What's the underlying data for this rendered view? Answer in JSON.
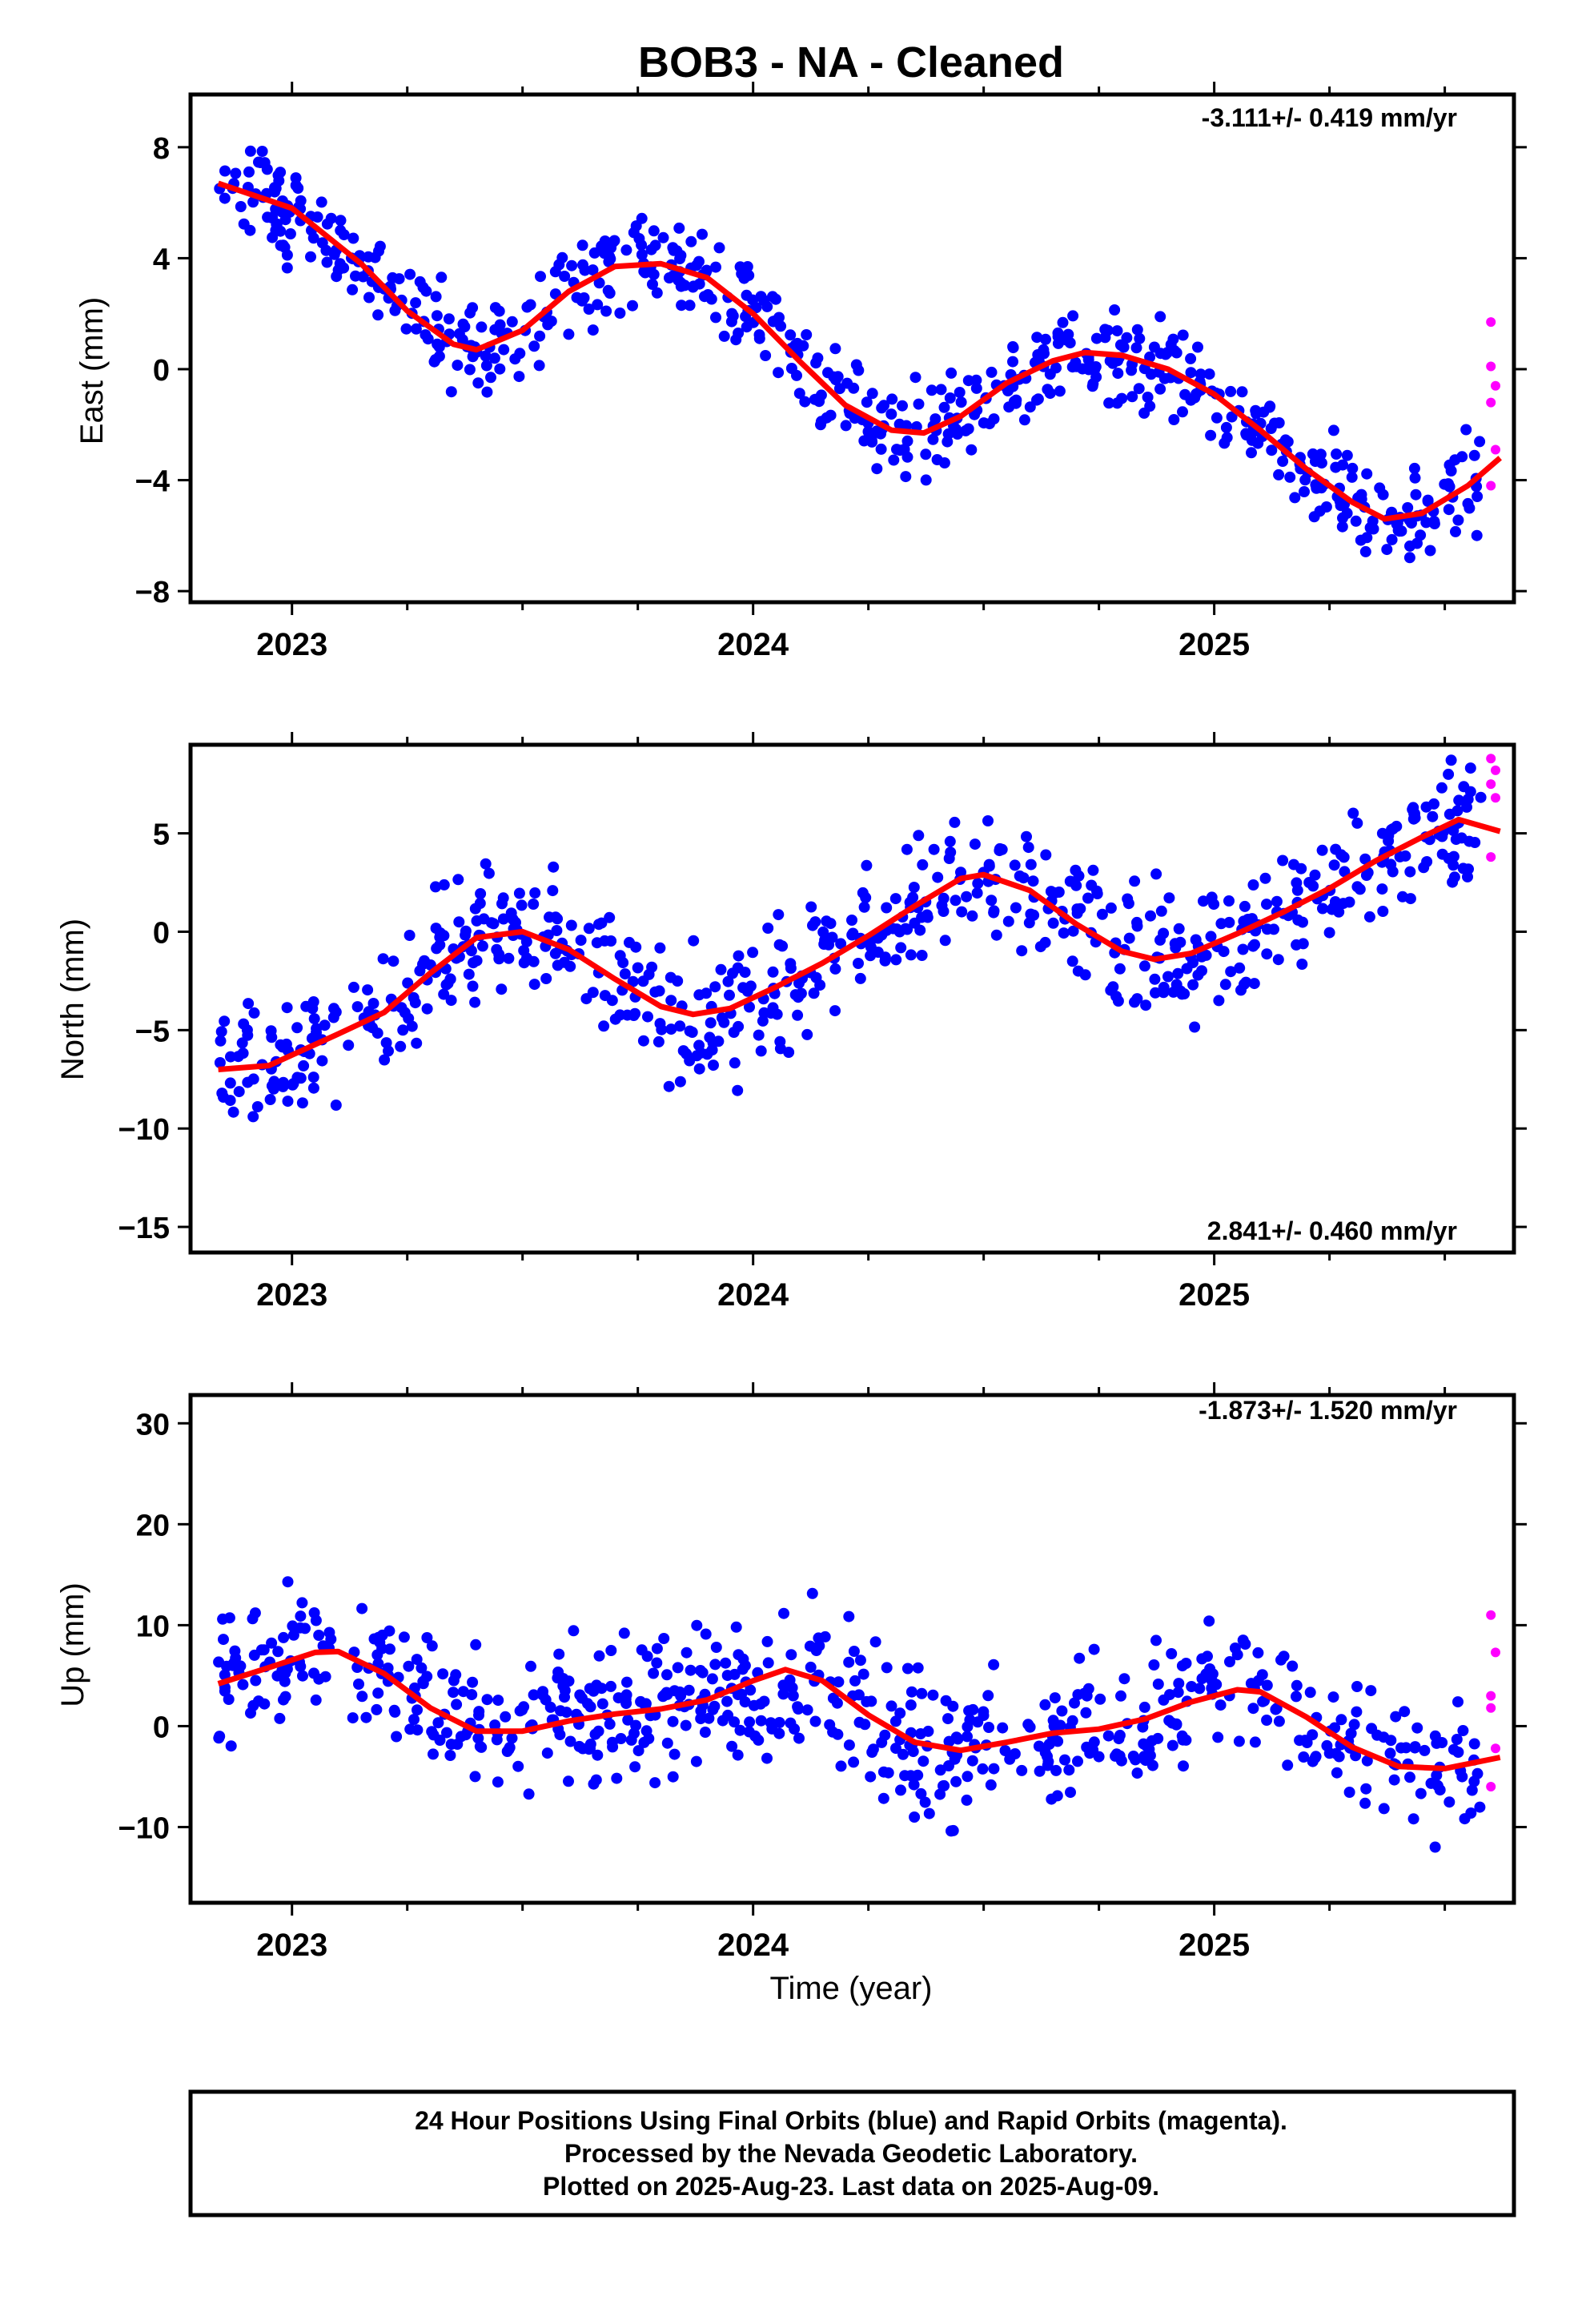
{
  "title": "BOB3  - NA - Cleaned",
  "colors": {
    "final": "#0000ff",
    "rapid": "#ff00ff",
    "fit": "#ff0000",
    "axis": "#000000"
  },
  "footer": {
    "line1": "24 Hour Positions Using Final Orbits (blue) and Rapid Orbits (magenta).",
    "line2": "Processed by the Nevada Geodetic Laboratory.",
    "line3": "Plotted on 2025-Aug-23. Last data on 2025-Aug-09."
  },
  "chart_data": [
    {
      "type": "scatter",
      "ylabel": "East (mm)",
      "xlabel": "",
      "rate": "-3.111+/- 0.419 mm/yr",
      "rate_position": "top-right",
      "xlim": [
        2022.78,
        2025.65
      ],
      "ylim": [
        -8.4,
        9.9
      ],
      "yticks": [
        -8,
        -4,
        0,
        4,
        8
      ],
      "ytick_labels": [
        "−8",
        "−4",
        "0",
        "4",
        "8"
      ],
      "xticks": [
        2023,
        2024,
        2025
      ],
      "xtick_labels": [
        "2023",
        "2024",
        "2025"
      ],
      "model_curve": [
        [
          2022.84,
          6.7
        ],
        [
          2023.0,
          5.8
        ],
        [
          2023.15,
          3.8
        ],
        [
          2023.25,
          2.1
        ],
        [
          2023.35,
          0.9
        ],
        [
          2023.4,
          0.7
        ],
        [
          2023.5,
          1.4
        ],
        [
          2023.6,
          2.8
        ],
        [
          2023.7,
          3.7
        ],
        [
          2023.8,
          3.8
        ],
        [
          2023.9,
          3.3
        ],
        [
          2024.0,
          2.0
        ],
        [
          2024.1,
          0.3
        ],
        [
          2024.2,
          -1.3
        ],
        [
          2024.3,
          -2.2
        ],
        [
          2024.37,
          -2.3
        ],
        [
          2024.45,
          -1.7
        ],
        [
          2024.55,
          -0.5
        ],
        [
          2024.65,
          0.3
        ],
        [
          2024.72,
          0.6
        ],
        [
          2024.8,
          0.5
        ],
        [
          2024.9,
          0.0
        ],
        [
          2025.0,
          -0.9
        ],
        [
          2025.1,
          -2.2
        ],
        [
          2025.2,
          -3.6
        ],
        [
          2025.3,
          -4.8
        ],
        [
          2025.37,
          -5.4
        ],
        [
          2025.45,
          -5.2
        ],
        [
          2025.55,
          -4.2
        ],
        [
          2025.62,
          -3.2
        ]
      ],
      "rapid_points": [
        [
          2025.6,
          1.7
        ],
        [
          2025.6,
          0.1
        ],
        [
          2025.61,
          -0.6
        ],
        [
          2025.6,
          -1.2
        ],
        [
          2025.61,
          -2.9
        ],
        [
          2025.6,
          -4.2
        ]
      ]
    },
    {
      "type": "scatter",
      "ylabel": "North (mm)",
      "xlabel": "",
      "rate": "2.841+/- 0.460 mm/yr",
      "rate_position": "bottom-right",
      "xlim": [
        2022.78,
        2025.65
      ],
      "ylim": [
        -16.3,
        9.5
      ],
      "yticks": [
        -15,
        -10,
        -5,
        0,
        5
      ],
      "ytick_labels": [
        "−15",
        "−10",
        "−5",
        "0",
        "5"
      ],
      "xticks": [
        2023,
        2024,
        2025
      ],
      "xtick_labels": [
        "2023",
        "2024",
        "2025"
      ],
      "model_curve": [
        [
          2022.84,
          -7.0
        ],
        [
          2022.95,
          -6.8
        ],
        [
          2023.1,
          -5.2
        ],
        [
          2023.2,
          -4.1
        ],
        [
          2023.3,
          -2.1
        ],
        [
          2023.4,
          -0.3
        ],
        [
          2023.5,
          0.0
        ],
        [
          2023.6,
          -0.9
        ],
        [
          2023.7,
          -2.4
        ],
        [
          2023.8,
          -3.8
        ],
        [
          2023.87,
          -4.2
        ],
        [
          2023.95,
          -3.9
        ],
        [
          2024.05,
          -2.8
        ],
        [
          2024.15,
          -1.6
        ],
        [
          2024.25,
          -0.2
        ],
        [
          2024.35,
          1.3
        ],
        [
          2024.45,
          2.7
        ],
        [
          2024.5,
          2.9
        ],
        [
          2024.6,
          2.1
        ],
        [
          2024.7,
          0.4
        ],
        [
          2024.8,
          -1.0
        ],
        [
          2024.87,
          -1.4
        ],
        [
          2024.95,
          -1.1
        ],
        [
          2025.05,
          -0.1
        ],
        [
          2025.15,
          1.0
        ],
        [
          2025.25,
          2.2
        ],
        [
          2025.35,
          3.6
        ],
        [
          2025.45,
          4.8
        ],
        [
          2025.53,
          5.7
        ],
        [
          2025.62,
          5.1
        ]
      ],
      "rapid_points": [
        [
          2025.6,
          8.8
        ],
        [
          2025.61,
          8.2
        ],
        [
          2025.6,
          7.5
        ],
        [
          2025.61,
          6.8
        ],
        [
          2025.6,
          3.8
        ]
      ]
    },
    {
      "type": "scatter",
      "ylabel": "Up (mm)",
      "xlabel": "Time (year)",
      "rate": "-1.873+/- 1.520 mm/yr",
      "rate_position": "top-right",
      "xlim": [
        2022.78,
        2025.65
      ],
      "ylim": [
        -17.5,
        32.8
      ],
      "yticks": [
        -10,
        0,
        10,
        20,
        30
      ],
      "ytick_labels": [
        "−10",
        "0",
        "10",
        "20",
        "30"
      ],
      "xticks": [
        2023,
        2024,
        2025
      ],
      "xtick_labels": [
        "2023",
        "2024",
        "2025"
      ],
      "model_curve": [
        [
          2022.84,
          4.2
        ],
        [
          2022.95,
          5.8
        ],
        [
          2023.05,
          7.3
        ],
        [
          2023.1,
          7.4
        ],
        [
          2023.2,
          5.2
        ],
        [
          2023.3,
          1.8
        ],
        [
          2023.4,
          -0.5
        ],
        [
          2023.5,
          -0.5
        ],
        [
          2023.6,
          0.5
        ],
        [
          2023.7,
          1.2
        ],
        [
          2023.8,
          1.7
        ],
        [
          2023.9,
          2.6
        ],
        [
          2024.0,
          4.5
        ],
        [
          2024.07,
          5.6
        ],
        [
          2024.15,
          4.5
        ],
        [
          2024.25,
          1.1
        ],
        [
          2024.35,
          -1.6
        ],
        [
          2024.45,
          -2.4
        ],
        [
          2024.55,
          -1.6
        ],
        [
          2024.65,
          -0.7
        ],
        [
          2024.75,
          -0.3
        ],
        [
          2024.85,
          0.7
        ],
        [
          2024.95,
          2.4
        ],
        [
          2025.05,
          3.6
        ],
        [
          2025.1,
          3.4
        ],
        [
          2025.2,
          0.9
        ],
        [
          2025.3,
          -2.1
        ],
        [
          2025.4,
          -4.0
        ],
        [
          2025.5,
          -4.2
        ],
        [
          2025.62,
          -3.1
        ]
      ],
      "rapid_points": [
        [
          2025.6,
          11.0
        ],
        [
          2025.61,
          7.3
        ],
        [
          2025.6,
          3.0
        ],
        [
          2025.6,
          1.8
        ],
        [
          2025.61,
          -2.2
        ],
        [
          2025.6,
          -6.0
        ]
      ]
    }
  ]
}
